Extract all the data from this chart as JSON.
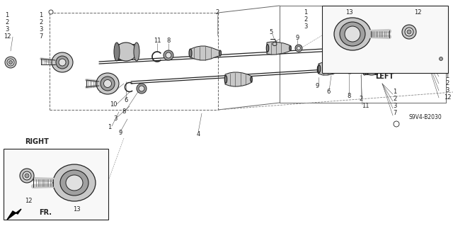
{
  "bg_color": "#ffffff",
  "line_color": "#222222",
  "diagram_code": "S9V4-B2030",
  "left_label": "LEFT",
  "right_label": "RIGHT",
  "fr_label": "FR.",
  "gray1": "#c8c8c8",
  "gray2": "#a0a0a0",
  "gray3": "#808080",
  "gray4": "#606060",
  "gray5": "#e0e0e0"
}
